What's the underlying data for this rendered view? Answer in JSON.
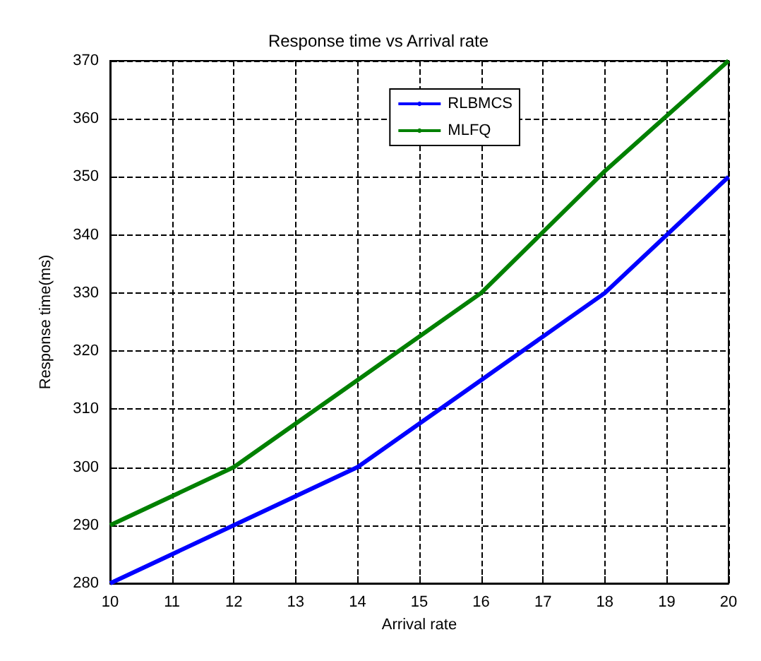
{
  "chart_data": {
    "type": "line",
    "title": "Response time vs Arrival rate",
    "xlabel": "Arrival rate",
    "ylabel": "Response time(ms)",
    "x": [
      10,
      12,
      14,
      16,
      18,
      20
    ],
    "series": [
      {
        "name": "RLBMCS",
        "color": "#0000ff",
        "values": [
          280,
          290,
          300,
          315,
          330,
          350
        ]
      },
      {
        "name": "MLFQ",
        "color": "#008000",
        "values": [
          290,
          300,
          315,
          330,
          351,
          370
        ]
      }
    ],
    "xlim": [
      10,
      20
    ],
    "xticks": [
      10,
      11,
      12,
      13,
      14,
      15,
      16,
      17,
      18,
      19,
      20
    ],
    "ylim": [
      280,
      370
    ],
    "yticks": [
      280,
      290,
      300,
      310,
      320,
      330,
      340,
      350,
      360,
      370
    ],
    "grid": true,
    "legend": "top right",
    "line_style": "solid"
  }
}
